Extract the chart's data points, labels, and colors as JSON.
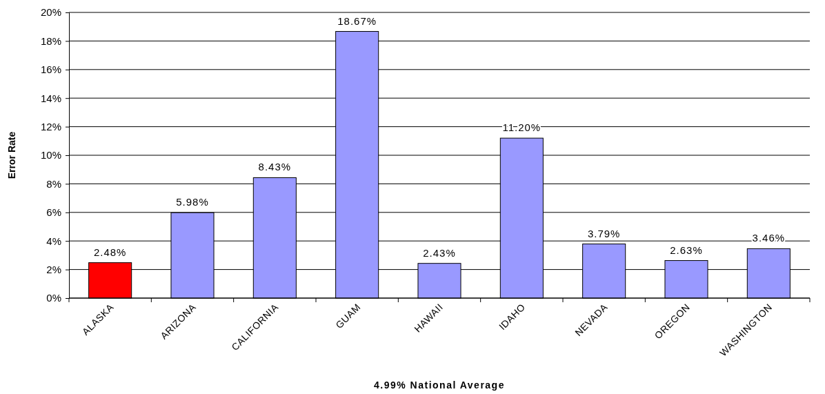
{
  "chart_data": {
    "type": "bar",
    "xlabel": "4.99% National Average",
    "ylabel": "Error Rate",
    "categories": [
      "ALASKA",
      "ARIZONA",
      "CALIFORNIA",
      "GUAM",
      "HAWAII",
      "IDAHO",
      "NEVADA",
      "OREGON",
      "WASHINGTON"
    ],
    "values": [
      2.48,
      5.98,
      8.43,
      18.67,
      2.43,
      11.2,
      3.79,
      2.63,
      3.46
    ],
    "colors": [
      "#ff0000",
      "#9999ff",
      "#9999ff",
      "#9999ff",
      "#9999ff",
      "#9999ff",
      "#9999ff",
      "#9999ff",
      "#9999ff"
    ],
    "value_labels": [
      "2.48%",
      "5.98%",
      "8.43%",
      "18.67%",
      "2.43%",
      "11.20%",
      "3.79%",
      "2.63%",
      "3.46%"
    ],
    "ylim": [
      0,
      20
    ],
    "yticks": [
      {
        "value": 0,
        "label": "0%"
      },
      {
        "value": 2,
        "label": "2%"
      },
      {
        "value": 4,
        "label": "4%"
      },
      {
        "value": 6,
        "label": "6%"
      },
      {
        "value": 8,
        "label": "8%"
      },
      {
        "value": 10,
        "label": "10%"
      },
      {
        "value": 12,
        "label": "12%"
      },
      {
        "value": 14,
        "label": "14%"
      },
      {
        "value": 16,
        "label": "16%"
      },
      {
        "value": 18,
        "label": "18%"
      },
      {
        "value": 20,
        "label": "20%"
      }
    ],
    "grid": "y"
  }
}
